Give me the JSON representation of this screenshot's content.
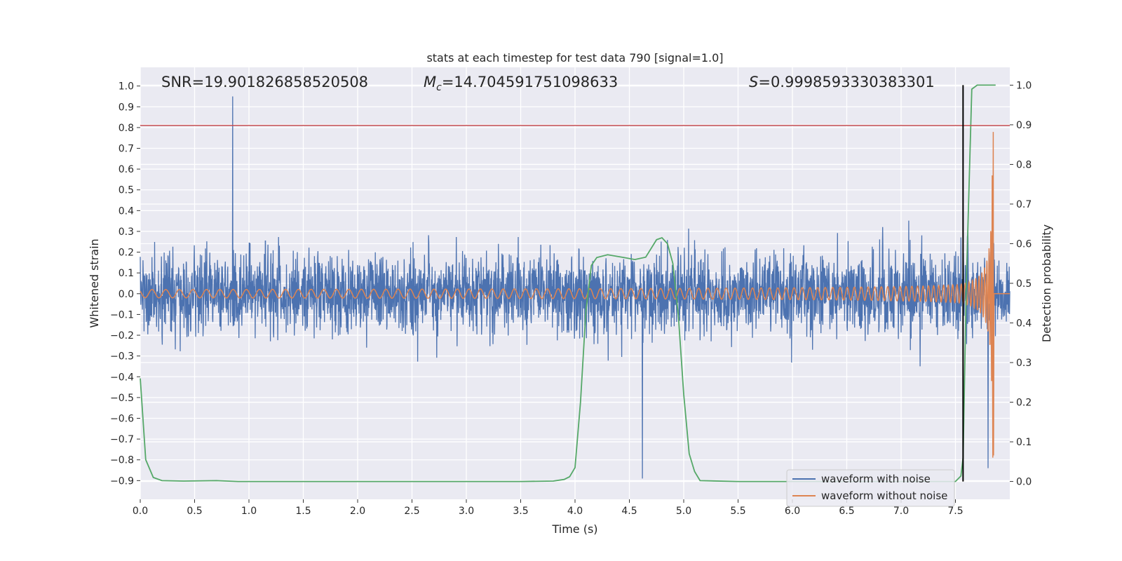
{
  "chart_data": {
    "type": "line",
    "title": "stats at each timestep for test data 790 [signal=1.0]",
    "xlabel": "Time (s)",
    "ylabel": "Whitened strain",
    "y2label": "Detection probability",
    "xlim": [
      0.0,
      8.0
    ],
    "ylim": [
      -0.99,
      1.09
    ],
    "y2lim": [
      -0.045,
      1.045
    ],
    "x_ticks": [
      "0.0",
      "0.5",
      "1.0",
      "1.5",
      "2.0",
      "2.5",
      "3.0",
      "3.5",
      "4.0",
      "4.5",
      "5.0",
      "5.5",
      "6.0",
      "6.5",
      "7.0",
      "7.5"
    ],
    "y_ticks": [
      "1.0",
      "0.9",
      "0.8",
      "0.7",
      "0.6",
      "0.5",
      "0.4",
      "0.3",
      "0.2",
      "0.1",
      "0.0",
      "−0.1",
      "−0.2",
      "−0.3",
      "−0.4",
      "−0.5",
      "−0.6",
      "−0.7",
      "−0.8",
      "−0.9"
    ],
    "y2_ticks": [
      "1.0",
      "0.9",
      "0.8",
      "0.7",
      "0.6",
      "0.5",
      "0.4",
      "0.3",
      "0.2",
      "0.1",
      "0.0"
    ],
    "grid": true,
    "legend_position": "lower-right",
    "annotations": {
      "snr": "SNR=19.901826858520508",
      "mc_symbol": "M",
      "mc_subscript": "c",
      "mc_value": "=14.704591751098633",
      "s_symbol": "S",
      "s_value": "=0.9998593330383301"
    },
    "series": [
      {
        "name": "waveform with noise",
        "color": "#4c72b0",
        "axis": "left",
        "description_envelope_typical": 0.4,
        "notable_peaks": [
          {
            "x": 0.85,
            "y": 0.95
          },
          {
            "x": 4.62,
            "y": -0.89
          },
          {
            "x": 7.8,
            "y": 0.87
          },
          {
            "x": 7.8,
            "y": -0.84
          }
        ]
      },
      {
        "name": "waveform without noise",
        "color": "#dd8452",
        "axis": "left",
        "chirp": {
          "start_amplitude": 0.02,
          "peak_amplitude": 0.85,
          "merger_time": 7.85,
          "end_time": 8.0
        }
      },
      {
        "color": "#55a868",
        "axis": "right",
        "x": [
          0.0,
          0.05,
          0.12,
          0.2,
          0.4,
          0.7,
          0.9,
          1.5,
          2.5,
          3.5,
          3.8,
          3.9,
          3.95,
          4.0,
          4.05,
          4.1,
          4.15,
          4.2,
          4.3,
          4.45,
          4.55,
          4.65,
          4.75,
          4.8,
          4.85,
          4.9,
          4.95,
          5.0,
          5.05,
          5.1,
          5.15,
          5.5,
          6.0,
          7.0,
          7.5,
          7.55,
          7.57,
          7.6,
          7.65,
          7.7,
          7.8,
          7.87
        ],
        "y": [
          0.26,
          0.055,
          0.01,
          0.002,
          0.001,
          0.002,
          0.0,
          0.0,
          0.0,
          0.0,
          0.001,
          0.005,
          0.012,
          0.035,
          0.2,
          0.43,
          0.545,
          0.565,
          0.572,
          0.565,
          0.56,
          0.566,
          0.61,
          0.615,
          0.6,
          0.55,
          0.42,
          0.22,
          0.07,
          0.025,
          0.002,
          0.0,
          0.0,
          0.0,
          0.0,
          0.014,
          0.06,
          0.5,
          0.99,
          1.0,
          1.0,
          1.0
        ]
      }
    ],
    "hlines": [
      {
        "axis": "left",
        "y": 0.81,
        "color": "#c44e52"
      }
    ],
    "vlines": [
      {
        "x": 7.57,
        "y2_from": 0.0,
        "y2_to": 1.0,
        "color": "#000000"
      }
    ]
  }
}
